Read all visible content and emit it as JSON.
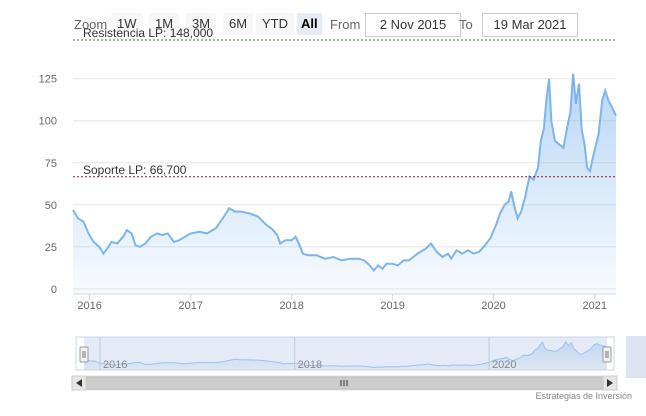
{
  "toolbar": {
    "zoom_label": "Zoom",
    "buttons": [
      "1W",
      "1M",
      "3M",
      "6M",
      "YTD",
      "All"
    ],
    "selected": "All",
    "from_label": "From",
    "from_value": "2 Nov 2015",
    "to_label": "To",
    "to_value": "19 Mar 2021"
  },
  "credits": "Estrategias de Inversión",
  "colors": {
    "series": "#7cb5ec",
    "resistance": "#2e7d32",
    "support": "#8b1a1a",
    "navigator_mask": "#c6d2ea"
  },
  "chart_data": {
    "type": "area",
    "series": [
      {
        "values": [
          [
            "2015-11-02",
            47
          ],
          [
            "2015-11-20",
            42
          ],
          [
            "2015-12-10",
            40
          ],
          [
            "2015-12-28",
            33
          ],
          [
            "2016-01-15",
            28
          ],
          [
            "2016-02-05",
            25
          ],
          [
            "2016-02-20",
            21
          ],
          [
            "2016-03-05",
            24
          ],
          [
            "2016-03-20",
            28
          ],
          [
            "2016-04-10",
            27
          ],
          [
            "2016-05-01",
            31
          ],
          [
            "2016-05-15",
            35
          ],
          [
            "2016-06-01",
            33
          ],
          [
            "2016-06-15",
            26
          ],
          [
            "2016-07-01",
            25
          ],
          [
            "2016-07-20",
            27
          ],
          [
            "2016-08-10",
            31
          ],
          [
            "2016-09-01",
            33
          ],
          [
            "2016-09-20",
            32
          ],
          [
            "2016-10-10",
            33
          ],
          [
            "2016-11-01",
            28
          ],
          [
            "2016-11-20",
            29
          ],
          [
            "2016-12-10",
            31
          ],
          [
            "2017-01-01",
            33
          ],
          [
            "2017-02-01",
            34
          ],
          [
            "2017-03-01",
            33
          ],
          [
            "2017-04-01",
            36
          ],
          [
            "2017-05-01",
            43
          ],
          [
            "2017-05-20",
            48
          ],
          [
            "2017-06-10",
            46
          ],
          [
            "2017-07-01",
            46
          ],
          [
            "2017-08-01",
            45
          ],
          [
            "2017-09-01",
            43
          ],
          [
            "2017-10-01",
            38
          ],
          [
            "2017-10-20",
            36
          ],
          [
            "2017-11-10",
            32
          ],
          [
            "2017-11-20",
            27
          ],
          [
            "2017-12-10",
            29
          ],
          [
            "2018-01-01",
            29
          ],
          [
            "2018-01-15",
            31
          ],
          [
            "2018-02-01",
            25
          ],
          [
            "2018-02-10",
            21
          ],
          [
            "2018-03-01",
            20
          ],
          [
            "2018-04-01",
            20
          ],
          [
            "2018-05-01",
            18
          ],
          [
            "2018-06-01",
            19
          ],
          [
            "2018-07-01",
            17
          ],
          [
            "2018-08-01",
            18
          ],
          [
            "2018-09-01",
            18
          ],
          [
            "2018-09-20",
            17
          ],
          [
            "2018-10-10",
            14
          ],
          [
            "2018-10-25",
            11
          ],
          [
            "2018-11-10",
            14
          ],
          [
            "2018-11-25",
            12
          ],
          [
            "2018-12-10",
            15
          ],
          [
            "2019-01-01",
            15
          ],
          [
            "2019-01-20",
            14
          ],
          [
            "2019-02-10",
            17
          ],
          [
            "2019-03-01",
            17
          ],
          [
            "2019-04-01",
            21
          ],
          [
            "2019-05-01",
            24
          ],
          [
            "2019-05-20",
            27
          ],
          [
            "2019-06-10",
            22
          ],
          [
            "2019-07-01",
            19
          ],
          [
            "2019-07-20",
            21
          ],
          [
            "2019-08-01",
            18
          ],
          [
            "2019-08-20",
            23
          ],
          [
            "2019-09-10",
            21
          ],
          [
            "2019-10-01",
            23
          ],
          [
            "2019-10-20",
            21
          ],
          [
            "2019-11-10",
            22
          ],
          [
            "2019-12-01",
            26
          ],
          [
            "2019-12-20",
            30
          ],
          [
            "2020-01-10",
            38
          ],
          [
            "2020-01-25",
            45
          ],
          [
            "2020-02-10",
            50
          ],
          [
            "2020-02-25",
            52
          ],
          [
            "2020-03-05",
            58
          ],
          [
            "2020-03-15",
            50
          ],
          [
            "2020-03-28",
            42
          ],
          [
            "2020-04-10",
            46
          ],
          [
            "2020-04-25",
            55
          ],
          [
            "2020-05-10",
            67
          ],
          [
            "2020-05-25",
            65
          ],
          [
            "2020-06-10",
            72
          ],
          [
            "2020-06-20",
            88
          ],
          [
            "2020-07-01",
            95
          ],
          [
            "2020-07-10",
            112
          ],
          [
            "2020-07-20",
            125
          ],
          [
            "2020-07-28",
            100
          ],
          [
            "2020-08-10",
            88
          ],
          [
            "2020-08-25",
            86
          ],
          [
            "2020-09-10",
            84
          ],
          [
            "2020-09-22",
            95
          ],
          [
            "2020-10-05",
            105
          ],
          [
            "2020-10-15",
            128
          ],
          [
            "2020-10-25",
            110
          ],
          [
            "2020-11-05",
            122
          ],
          [
            "2020-11-15",
            95
          ],
          [
            "2020-11-25",
            86
          ],
          [
            "2020-12-05",
            72
          ],
          [
            "2020-12-15",
            70
          ],
          [
            "2020-12-28",
            80
          ],
          [
            "2021-01-15",
            92
          ],
          [
            "2021-01-28",
            112
          ],
          [
            "2021-02-08",
            118
          ],
          [
            "2021-02-20",
            112
          ],
          [
            "2021-03-05",
            108
          ],
          [
            "2021-03-19",
            103
          ]
        ]
      }
    ],
    "y_ticks": [
      0,
      25,
      50,
      75,
      100,
      125
    ],
    "ylim": [
      -3,
      148
    ],
    "xlim": [
      "2015-11-02",
      "2021-03-19"
    ],
    "x_ticks": [
      "2016",
      "2017",
      "2018",
      "2019",
      "2020",
      "2021"
    ],
    "plot_lines": [
      {
        "label": "Resistencia LP: 148,000",
        "value": 148,
        "style": "dotted"
      },
      {
        "label": "Soporte LP: 66,700",
        "value": 66.7,
        "style": "dotted"
      }
    ],
    "navigator_x_ticks": [
      "2016",
      "2018",
      "2020"
    ],
    "grid": true
  }
}
